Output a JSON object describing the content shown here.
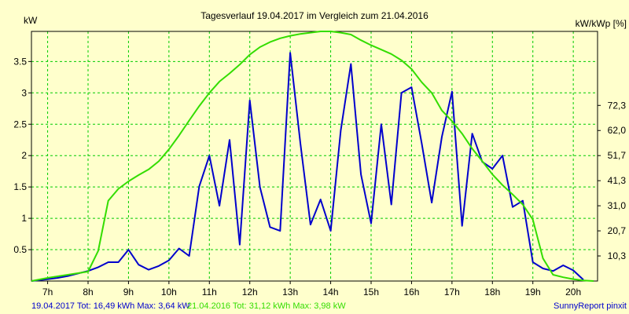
{
  "chart_data": {
    "type": "line",
    "title": "Tagesverlauf 19.04.2017 im Vergleich zum 21.04.2016",
    "ylabel_left": "kW",
    "ylabel_right": "kW/kWp [%]",
    "xlim": [
      6.6,
      20.6
    ],
    "ylim": [
      0,
      3.98
    ],
    "x_ticks": [
      {
        "x": 7,
        "label": "7h"
      },
      {
        "x": 8,
        "label": "8h"
      },
      {
        "x": 9,
        "label": "9h"
      },
      {
        "x": 10,
        "label": "10h"
      },
      {
        "x": 11,
        "label": "11h"
      },
      {
        "x": 12,
        "label": "12h"
      },
      {
        "x": 13,
        "label": "13h"
      },
      {
        "x": 14,
        "label": "14h"
      },
      {
        "x": 15,
        "label": "15h"
      },
      {
        "x": 16,
        "label": "16h"
      },
      {
        "x": 17,
        "label": "17h"
      },
      {
        "x": 18,
        "label": "18h"
      },
      {
        "x": 19,
        "label": "19h"
      },
      {
        "x": 20,
        "label": "20h"
      }
    ],
    "y_ticks_left": [
      {
        "y": 0.5,
        "label": "0.5"
      },
      {
        "y": 1.0,
        "label": "1"
      },
      {
        "y": 1.5,
        "label": "1.5"
      },
      {
        "y": 2.0,
        "label": "2"
      },
      {
        "y": 2.5,
        "label": "2.5"
      },
      {
        "y": 3.0,
        "label": "3"
      },
      {
        "y": 3.5,
        "label": "3.5"
      }
    ],
    "y_ticks_right": [
      {
        "y": 0.4,
        "label": "10,3"
      },
      {
        "y": 0.8,
        "label": "20,7"
      },
      {
        "y": 1.2,
        "label": "31,0"
      },
      {
        "y": 1.6,
        "label": "41,3"
      },
      {
        "y": 2.0,
        "label": "51,7"
      },
      {
        "y": 2.4,
        "label": "62,0"
      },
      {
        "y": 2.8,
        "label": "72,3"
      }
    ],
    "grid": true,
    "series": [
      {
        "name": "19.04.2017",
        "color": "#0000cc",
        "points": [
          [
            6.6,
            0.0
          ],
          [
            7.0,
            0.03
          ],
          [
            7.25,
            0.05
          ],
          [
            7.5,
            0.08
          ],
          [
            7.75,
            0.12
          ],
          [
            8.0,
            0.16
          ],
          [
            8.25,
            0.22
          ],
          [
            8.5,
            0.3
          ],
          [
            8.75,
            0.3
          ],
          [
            9.0,
            0.5
          ],
          [
            9.25,
            0.26
          ],
          [
            9.5,
            0.18
          ],
          [
            9.75,
            0.24
          ],
          [
            10.0,
            0.33
          ],
          [
            10.25,
            0.52
          ],
          [
            10.5,
            0.4
          ],
          [
            10.75,
            1.51
          ],
          [
            11.0,
            2.0
          ],
          [
            11.25,
            1.2
          ],
          [
            11.5,
            2.25
          ],
          [
            11.75,
            0.58
          ],
          [
            12.0,
            2.88
          ],
          [
            12.25,
            1.5
          ],
          [
            12.5,
            0.86
          ],
          [
            12.75,
            0.8
          ],
          [
            13.0,
            3.64
          ],
          [
            13.25,
            2.2
          ],
          [
            13.5,
            0.9
          ],
          [
            13.75,
            1.3
          ],
          [
            14.0,
            0.8
          ],
          [
            14.25,
            2.4
          ],
          [
            14.5,
            3.46
          ],
          [
            14.75,
            1.7
          ],
          [
            15.0,
            0.92
          ],
          [
            15.25,
            2.5
          ],
          [
            15.5,
            1.22
          ],
          [
            15.75,
            3.0
          ],
          [
            16.0,
            3.09
          ],
          [
            16.25,
            2.2
          ],
          [
            16.5,
            1.25
          ],
          [
            16.75,
            2.3
          ],
          [
            17.0,
            3.02
          ],
          [
            17.25,
            0.88
          ],
          [
            17.5,
            2.35
          ],
          [
            17.75,
            1.9
          ],
          [
            18.0,
            1.79
          ],
          [
            18.25,
            2.0
          ],
          [
            18.5,
            1.18
          ],
          [
            18.75,
            1.28
          ],
          [
            19.0,
            0.3
          ],
          [
            19.25,
            0.2
          ],
          [
            19.5,
            0.16
          ],
          [
            19.75,
            0.25
          ],
          [
            20.0,
            0.17
          ],
          [
            20.25,
            0.02
          ]
        ]
      },
      {
        "name": "21.04.2016",
        "color": "#33dd00",
        "points": [
          [
            6.6,
            0.0
          ],
          [
            7.0,
            0.05
          ],
          [
            7.5,
            0.1
          ],
          [
            8.0,
            0.15
          ],
          [
            8.25,
            0.48
          ],
          [
            8.5,
            1.28
          ],
          [
            8.75,
            1.47
          ],
          [
            9.0,
            1.59
          ],
          [
            9.25,
            1.69
          ],
          [
            9.5,
            1.78
          ],
          [
            9.75,
            1.91
          ],
          [
            10.0,
            2.1
          ],
          [
            10.25,
            2.32
          ],
          [
            10.5,
            2.56
          ],
          [
            10.75,
            2.79
          ],
          [
            11.0,
            3.0
          ],
          [
            11.25,
            3.18
          ],
          [
            11.5,
            3.31
          ],
          [
            11.75,
            3.45
          ],
          [
            12.0,
            3.61
          ],
          [
            12.25,
            3.73
          ],
          [
            12.5,
            3.81
          ],
          [
            12.75,
            3.87
          ],
          [
            13.0,
            3.91
          ],
          [
            13.25,
            3.94
          ],
          [
            13.5,
            3.96
          ],
          [
            13.75,
            3.98
          ],
          [
            14.0,
            3.98
          ],
          [
            14.25,
            3.96
          ],
          [
            14.5,
            3.93
          ],
          [
            14.75,
            3.84
          ],
          [
            15.0,
            3.76
          ],
          [
            15.25,
            3.69
          ],
          [
            15.5,
            3.62
          ],
          [
            15.75,
            3.52
          ],
          [
            16.0,
            3.38
          ],
          [
            16.25,
            3.17
          ],
          [
            16.5,
            3.0
          ],
          [
            16.75,
            2.72
          ],
          [
            17.0,
            2.55
          ],
          [
            17.25,
            2.35
          ],
          [
            17.5,
            2.11
          ],
          [
            17.75,
            1.91
          ],
          [
            18.0,
            1.7
          ],
          [
            18.25,
            1.53
          ],
          [
            18.5,
            1.38
          ],
          [
            18.75,
            1.22
          ],
          [
            19.0,
            0.98
          ],
          [
            19.25,
            0.36
          ],
          [
            19.5,
            0.1
          ],
          [
            19.75,
            0.06
          ],
          [
            20.0,
            0.03
          ],
          [
            20.25,
            0.01
          ],
          [
            20.5,
            0.0
          ]
        ]
      }
    ]
  },
  "footer": {
    "summary_2017": "19.04.2017 Tot: 16,49 kWh Max: 3,64 kW",
    "summary_2016": "21.04.2016 Tot: 31,12 kWh Max: 3,98 kW",
    "credit": "SunnyReport pinxit"
  },
  "colors": {
    "background": "#ffffcc",
    "grid": "#00cc00",
    "series_2017": "#0000cc",
    "series_2016": "#33dd00"
  }
}
